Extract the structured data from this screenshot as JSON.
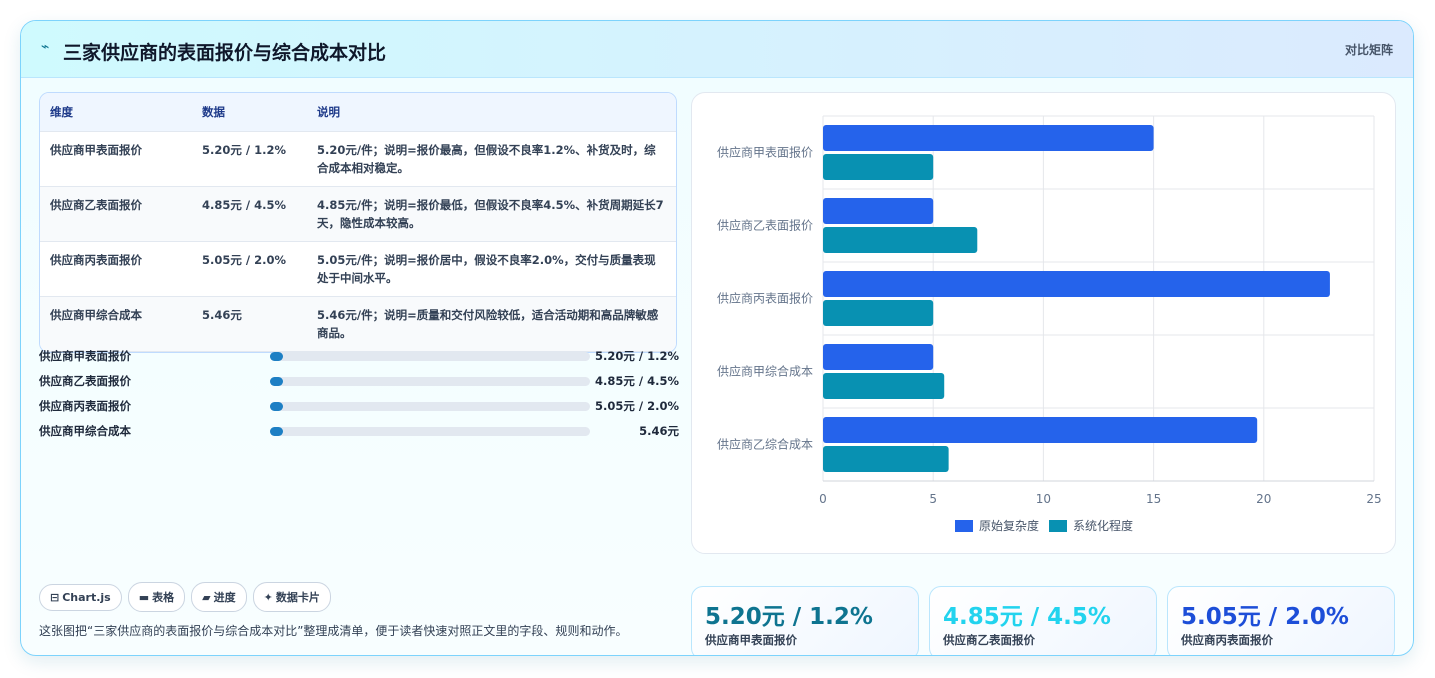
{
  "header": {
    "title": "三家供应商的表面报价与综合成本对比",
    "tag": "对比矩阵"
  },
  "table": {
    "columns": [
      "维度",
      "数据",
      "说明"
    ],
    "rows": [
      [
        "供应商甲表面报价",
        "5.20元 / 1.2%",
        "5.20元/件；说明=报价最高，但假设不良率1.2%、补货及时，综合成本相对稳定。"
      ],
      [
        "供应商乙表面报价",
        "4.85元 / 4.5%",
        "4.85元/件；说明=报价最低，但假设不良率4.5%、补货周期延长7天，隐性成本较高。"
      ],
      [
        "供应商丙表面报价",
        "5.05元 / 2.0%",
        "5.05元/件；说明=报价居中，假设不良率2.0%，交付与质量表现处于中间水平。"
      ],
      [
        "供应商甲综合成本",
        "5.46元",
        "5.46元/件；说明=质量和交付风险较低，适合活动期和高品牌敏感商品。"
      ]
    ]
  },
  "progress": [
    {
      "label": "供应商甲表面报价",
      "value": "5.20元 / 1.2%"
    },
    {
      "label": "供应商乙表面报价",
      "value": "4.85元 / 4.5%"
    },
    {
      "label": "供应商丙表面报价",
      "value": "5.05元 / 2.0%"
    },
    {
      "label": "供应商甲综合成本",
      "value": "5.46元"
    }
  ],
  "chart_data": {
    "type": "bar",
    "orientation": "horizontal",
    "categories": [
      "供应商甲表面报价",
      "供应商乙表面报价",
      "供应商丙表面报价",
      "供应商甲综合成本",
      "供应商乙综合成本"
    ],
    "series": [
      {
        "name": "原始复杂度",
        "color": "#2563eb",
        "values": [
          15,
          5,
          23,
          5,
          19.7
        ]
      },
      {
        "name": "系统化程度",
        "color": "#0891b2",
        "values": [
          5,
          7,
          5,
          5.5,
          5.7
        ]
      }
    ],
    "xlim": [
      0,
      25
    ],
    "xticks": [
      0,
      5,
      10,
      15,
      20,
      25
    ],
    "grid": true,
    "legend": "bottom"
  },
  "cards": [
    {
      "value": "5.20元 / 1.2%",
      "label": "供应商甲表面报价",
      "color": "#0e7490"
    },
    {
      "value": "4.85元 / 4.5%",
      "label": "供应商乙表面报价",
      "color": "#22d3ee"
    },
    {
      "value": "5.05元 / 2.0%",
      "label": "供应商丙表面报价",
      "color": "#1d4ed8"
    }
  ],
  "chips": [
    "Chart.js",
    "表格",
    "进度",
    "数据卡片"
  ],
  "footnote": "这张图把“三家供应商的表面报价与综合成本对比”整理成清单，便于读者快速对照正文里的字段、规则和动作。"
}
